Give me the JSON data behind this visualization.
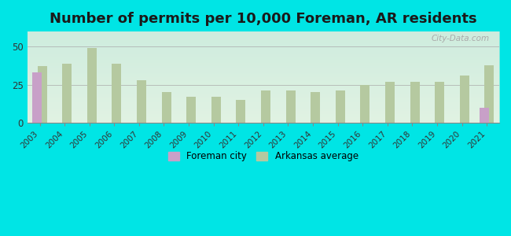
{
  "title": "Number of permits per 10,000 Foreman, AR residents",
  "years": [
    2003,
    2004,
    2005,
    2006,
    2007,
    2008,
    2009,
    2010,
    2011,
    2012,
    2013,
    2014,
    2015,
    2016,
    2017,
    2018,
    2019,
    2020,
    2021
  ],
  "foreman_values": [
    33,
    0,
    0,
    0,
    0,
    0,
    0,
    0,
    0,
    0,
    0,
    0,
    0,
    0,
    0,
    0,
    0,
    0,
    10
  ],
  "arkansas_values": [
    37,
    39,
    49,
    39,
    28,
    20,
    17,
    17,
    15,
    21,
    21,
    20,
    21,
    25,
    27,
    27,
    27,
    31,
    38
  ],
  "foreman_color": "#c8a0c8",
  "arkansas_color": "#b5c9a0",
  "background_outer": "#00e5e5",
  "background_inner_top": "#d8f0e8",
  "background_inner_bottom": "#e8f5e0",
  "ylim": [
    0,
    60
  ],
  "yticks": [
    0,
    25,
    50
  ],
  "legend_foreman": "Foreman city",
  "legend_arkansas": "Arkansas average",
  "title_fontsize": 13,
  "watermark": "City-Data.com"
}
